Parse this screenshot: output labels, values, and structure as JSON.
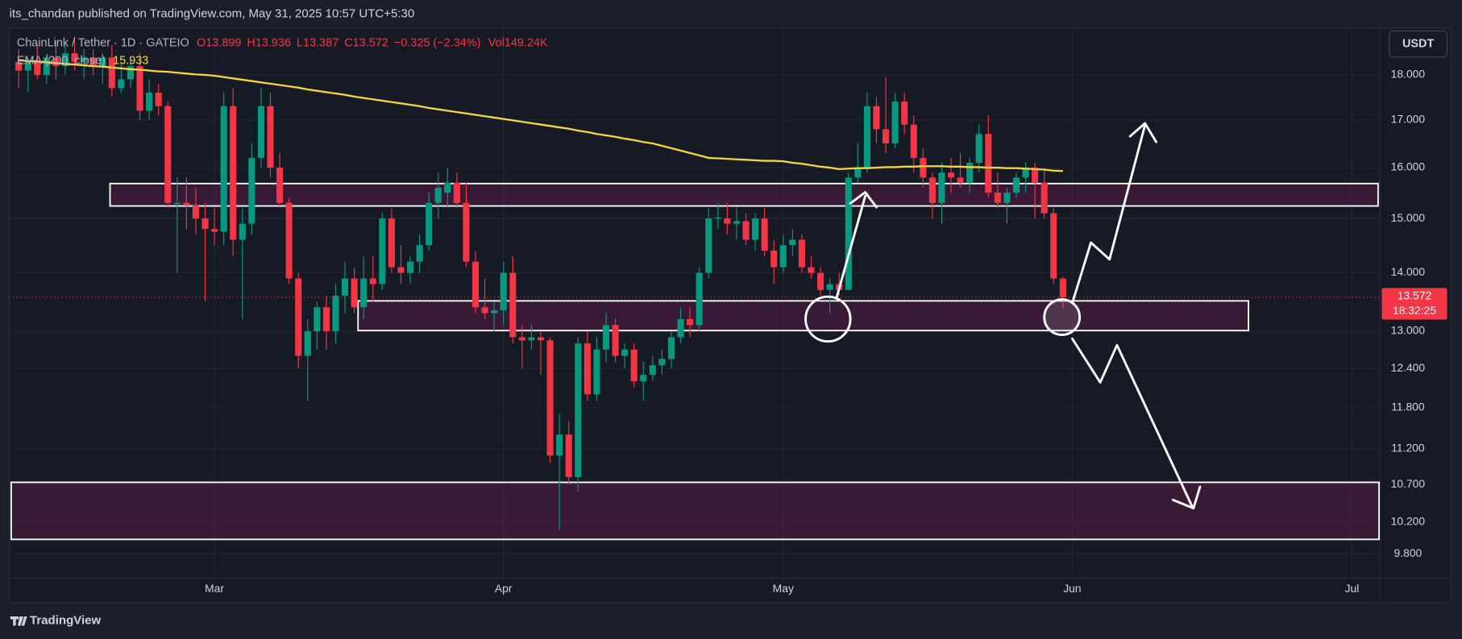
{
  "chart_data": {
    "type": "candlestick",
    "published": "its_chandan published on TradingView.com, May 31, 2025 10:57 UTC+5:30",
    "symbol": "ChainLink / Tether · 1D · GATEIO",
    "legend_text": [
      "O13.899",
      "H13.936",
      "L13.387",
      "C13.572",
      "−0.325 (−2.34%)",
      "Vol149.24K"
    ],
    "indicator": {
      "name": "EMA (200, close)",
      "value_label": "15.933",
      "color": "#f5d63d",
      "values": [
        18.34,
        18.32,
        18.31,
        18.29,
        18.27,
        18.25,
        18.24,
        18.22,
        18.2,
        18.19,
        18.17,
        18.15,
        18.13,
        18.12,
        18.1,
        18.08,
        18.07,
        18.05,
        18.03,
        18.01,
        18.0,
        17.98,
        17.95,
        17.92,
        17.89,
        17.86,
        17.83,
        17.8,
        17.77,
        17.74,
        17.71,
        17.67,
        17.64,
        17.61,
        17.58,
        17.55,
        17.51,
        17.48,
        17.45,
        17.42,
        17.39,
        17.36,
        17.33,
        17.3,
        17.26,
        17.23,
        17.2,
        17.17,
        17.14,
        17.11,
        17.08,
        17.05,
        17.02,
        16.99,
        16.96,
        16.93,
        16.9,
        16.87,
        16.84,
        16.81,
        16.77,
        16.74,
        16.7,
        16.67,
        16.64,
        16.6,
        16.57,
        16.53,
        16.5,
        16.45,
        16.4,
        16.35,
        16.3,
        16.25,
        16.2,
        16.19,
        16.18,
        16.17,
        16.16,
        16.15,
        16.14,
        16.14,
        16.13,
        16.1,
        16.08,
        16.05,
        16.02,
        16.0,
        15.97,
        15.98,
        15.99,
        15.99,
        16.0,
        16.01,
        16.01,
        16.02,
        16.02,
        16.03,
        16.03,
        16.03,
        16.02,
        16.02,
        16.01,
        16.01,
        16.0,
        16.0,
        15.99,
        15.99,
        15.98,
        15.97,
        15.96,
        15.94,
        15.933,
        null,
        null,
        null,
        null,
        null,
        null,
        null,
        null,
        null,
        null,
        null,
        null,
        null,
        null,
        null,
        null,
        null,
        null,
        null,
        null,
        null,
        null,
        null,
        null,
        null,
        null,
        null,
        null,
        null,
        null,
        null,
        null,
        null,
        null
      ]
    },
    "currency": "USDT",
    "price_tag": "13.572",
    "countdown": "18:32:25",
    "brand": "TradingView",
    "up_color": "#089981",
    "down_color": "#f23645",
    "log_scale": true,
    "grid": true,
    "ylim": [
      9.5,
      19.1
    ],
    "yticks": [
      {
        "value": 18,
        "label": "18.000"
      },
      {
        "value": 17,
        "label": "17.000"
      },
      {
        "value": 16,
        "label": "16.000"
      },
      {
        "value": 15,
        "label": "15.000"
      },
      {
        "value": 14,
        "label": "14.000"
      },
      {
        "value": 13,
        "label": "13.000"
      },
      {
        "value": 12.4,
        "label": "12.400"
      },
      {
        "value": 11.8,
        "label": "11.800"
      },
      {
        "value": 11.2,
        "label": "11.200"
      },
      {
        "value": 10.7,
        "label": "10.700"
      },
      {
        "value": 10.2,
        "label": "10.200"
      },
      {
        "value": 9.8,
        "label": "9.800"
      }
    ],
    "zones": [
      {
        "top": 15.68,
        "bottom": 15.24
      },
      {
        "top": 13.51,
        "bottom": 13.01
      },
      {
        "top": 10.73,
        "bottom": 9.98
      }
    ],
    "categories": [
      null,
      null,
      null,
      null,
      null,
      null,
      null,
      null,
      null,
      null,
      null,
      null,
      null,
      null,
      null,
      null,
      null,
      null,
      null,
      null,
      null,
      "Mar",
      null,
      null,
      null,
      null,
      null,
      null,
      null,
      null,
      null,
      null,
      null,
      null,
      null,
      null,
      null,
      null,
      null,
      null,
      null,
      null,
      null,
      null,
      null,
      null,
      null,
      null,
      null,
      null,
      null,
      null,
      "Apr",
      null,
      null,
      null,
      null,
      null,
      null,
      null,
      null,
      null,
      null,
      null,
      null,
      null,
      null,
      null,
      null,
      null,
      null,
      null,
      null,
      null,
      null,
      null,
      null,
      null,
      null,
      null,
      null,
      null,
      "May",
      null,
      null,
      null,
      null,
      null,
      null,
      null,
      null,
      null,
      null,
      null,
      null,
      null,
      null,
      null,
      null,
      null,
      null,
      null,
      null,
      null,
      null,
      null,
      null,
      null,
      null,
      null,
      null,
      null,
      null,
      "Jun",
      null,
      null,
      null,
      null,
      null,
      null,
      null,
      null,
      null,
      null,
      null,
      null,
      null,
      null,
      null,
      null,
      null,
      null,
      null,
      null,
      null,
      null,
      null,
      null,
      null,
      null,
      null,
      null,
      null,
      "Jul",
      null,
      null,
      null
    ],
    "candles": [
      [
        18.3,
        18.6,
        17.7,
        18.1
      ],
      [
        18.1,
        18.4,
        17.6,
        18.3
      ],
      [
        18.3,
        18.7,
        17.9,
        18.0
      ],
      [
        18.0,
        18.5,
        17.8,
        18.4
      ],
      [
        18.4,
        18.8,
        17.9,
        18.2
      ],
      [
        18.2,
        18.7,
        18.0,
        18.5
      ],
      [
        18.5,
        18.9,
        18.1,
        18.3
      ],
      [
        18.3,
        18.6,
        17.9,
        18.4
      ],
      [
        18.4,
        18.6,
        18.0,
        18.2
      ],
      [
        18.2,
        18.5,
        17.8,
        18.4
      ],
      [
        18.4,
        18.7,
        17.5,
        17.7
      ],
      [
        17.7,
        18.3,
        17.6,
        17.9
      ],
      [
        17.9,
        18.4,
        17.7,
        18.2
      ],
      [
        18.2,
        18.5,
        17.0,
        17.2
      ],
      [
        17.2,
        17.9,
        17.0,
        17.6
      ],
      [
        17.6,
        17.8,
        17.1,
        17.3
      ],
      [
        17.3,
        17.4,
        15.2,
        15.3
      ],
      [
        15.3,
        15.8,
        14.0,
        15.3
      ],
      [
        15.3,
        15.8,
        14.8,
        15.25
      ],
      [
        15.25,
        15.6,
        14.7,
        15.0
      ],
      [
        15.0,
        15.3,
        13.5,
        14.8
      ],
      [
        14.8,
        15.2,
        14.5,
        14.75
      ],
      [
        14.75,
        17.6,
        14.5,
        17.3
      ],
      [
        17.3,
        17.7,
        14.3,
        14.6
      ],
      [
        14.6,
        15.2,
        13.2,
        14.9
      ],
      [
        14.9,
        16.5,
        14.7,
        16.2
      ],
      [
        16.2,
        17.7,
        16.0,
        17.3
      ],
      [
        17.3,
        17.6,
        15.8,
        16.0
      ],
      [
        16.0,
        16.3,
        15.2,
        15.3
      ],
      [
        15.3,
        15.4,
        13.8,
        13.9
      ],
      [
        13.9,
        14.0,
        12.4,
        12.6
      ],
      [
        12.6,
        13.2,
        11.9,
        13.0
      ],
      [
        13.0,
        13.5,
        12.7,
        13.4
      ],
      [
        13.4,
        13.6,
        12.7,
        13.0
      ],
      [
        13.0,
        13.8,
        12.8,
        13.6
      ],
      [
        13.6,
        14.2,
        13.3,
        13.9
      ],
      [
        13.9,
        14.1,
        13.3,
        13.4
      ],
      [
        13.4,
        14.3,
        13.2,
        13.9
      ],
      [
        13.9,
        14.3,
        13.5,
        13.8
      ],
      [
        13.8,
        15.1,
        13.7,
        15.0
      ],
      [
        15.0,
        15.2,
        14.0,
        14.1
      ],
      [
        14.1,
        14.5,
        13.8,
        14.0
      ],
      [
        14.0,
        14.3,
        13.8,
        14.2
      ],
      [
        14.2,
        14.7,
        14.0,
        14.5
      ],
      [
        14.5,
        15.5,
        14.4,
        15.3
      ],
      [
        15.3,
        15.9,
        15.0,
        15.6
      ],
      [
        15.5,
        16.0,
        15.2,
        15.7
      ],
      [
        15.7,
        15.9,
        15.2,
        15.3
      ],
      [
        15.3,
        15.7,
        14.1,
        14.2
      ],
      [
        14.2,
        14.4,
        13.3,
        13.4
      ],
      [
        13.4,
        13.9,
        13.2,
        13.3
      ],
      [
        13.3,
        13.5,
        13.0,
        13.35
      ],
      [
        13.35,
        14.2,
        13.1,
        14.0
      ],
      [
        14.0,
        14.3,
        12.8,
        12.9
      ],
      [
        12.9,
        13.1,
        12.4,
        12.85
      ],
      [
        12.85,
        13.1,
        12.7,
        12.9
      ],
      [
        12.9,
        13.0,
        12.3,
        12.85
      ],
      [
        12.85,
        12.9,
        11.0,
        11.1
      ],
      [
        11.1,
        11.7,
        10.1,
        11.4
      ],
      [
        11.4,
        11.6,
        10.7,
        10.8
      ],
      [
        10.8,
        12.9,
        10.6,
        12.8
      ],
      [
        12.8,
        13.0,
        11.9,
        12.0
      ],
      [
        12.0,
        12.9,
        11.9,
        12.7
      ],
      [
        12.7,
        13.3,
        12.5,
        13.1
      ],
      [
        13.1,
        13.2,
        12.5,
        12.6
      ],
      [
        12.6,
        12.8,
        12.4,
        12.7
      ],
      [
        12.7,
        12.8,
        12.1,
        12.2
      ],
      [
        12.2,
        12.5,
        11.9,
        12.3
      ],
      [
        12.3,
        12.6,
        12.2,
        12.45
      ],
      [
        12.45,
        12.7,
        12.3,
        12.55
      ],
      [
        12.55,
        13.0,
        12.4,
        12.9
      ],
      [
        12.9,
        13.4,
        12.8,
        13.2
      ],
      [
        13.2,
        13.4,
        12.9,
        13.1
      ],
      [
        13.1,
        14.1,
        13.0,
        14.0
      ],
      [
        14.0,
        15.2,
        13.9,
        15.0
      ],
      [
        15.0,
        15.3,
        14.8,
        15.02
      ],
      [
        15.0,
        15.3,
        14.7,
        14.9
      ],
      [
        14.9,
        15.2,
        14.6,
        14.95
      ],
      [
        14.95,
        15.1,
        14.5,
        14.6
      ],
      [
        14.6,
        15.1,
        14.4,
        15.0
      ],
      [
        15.0,
        15.2,
        14.3,
        14.4
      ],
      [
        14.4,
        14.6,
        13.8,
        14.1
      ],
      [
        14.1,
        14.7,
        14.0,
        14.5
      ],
      [
        14.5,
        14.8,
        14.3,
        14.6
      ],
      [
        14.6,
        14.7,
        14.0,
        14.1
      ],
      [
        14.1,
        14.3,
        13.9,
        14.0
      ],
      [
        14.0,
        14.1,
        13.6,
        13.7
      ],
      [
        13.7,
        13.9,
        13.3,
        13.8
      ],
      [
        13.8,
        14.0,
        13.6,
        13.7
      ],
      [
        13.7,
        15.9,
        13.7,
        15.8
      ],
      [
        15.8,
        16.5,
        15.7,
        16.0
      ],
      [
        16.0,
        17.6,
        15.9,
        17.3
      ],
      [
        17.3,
        17.5,
        16.5,
        16.8
      ],
      [
        16.8,
        17.95,
        16.3,
        16.5
      ],
      [
        16.5,
        17.6,
        16.4,
        17.4
      ],
      [
        17.4,
        17.6,
        16.7,
        16.9
      ],
      [
        16.9,
        17.1,
        15.9,
        16.2
      ],
      [
        16.2,
        16.4,
        15.6,
        15.8
      ],
      [
        15.8,
        15.9,
        15.0,
        15.3
      ],
      [
        15.3,
        16.1,
        14.9,
        15.9
      ],
      [
        15.9,
        16.2,
        15.5,
        15.8
      ],
      [
        15.8,
        16.3,
        15.6,
        15.7
      ],
      [
        15.7,
        16.2,
        15.5,
        16.1
      ],
      [
        16.1,
        16.9,
        15.9,
        16.7
      ],
      [
        16.7,
        17.1,
        15.4,
        15.5
      ],
      [
        15.5,
        15.9,
        15.2,
        15.3
      ],
      [
        15.3,
        15.6,
        14.9,
        15.5
      ],
      [
        15.5,
        15.9,
        15.4,
        15.8
      ],
      [
        15.8,
        16.1,
        15.5,
        16.0
      ],
      [
        16.0,
        16.1,
        15.0,
        15.7
      ],
      [
        15.7,
        16.0,
        15.0,
        15.1
      ],
      [
        15.1,
        15.2,
        13.8,
        13.9
      ],
      [
        13.899,
        13.936,
        13.387,
        13.572
      ],
      null,
      null,
      null,
      null,
      null,
      null,
      null,
      null,
      null,
      null,
      null,
      null,
      null,
      null,
      null,
      null,
      null,
      null,
      null,
      null,
      null,
      null,
      null,
      null,
      null,
      null,
      null,
      null,
      null,
      null,
      null,
      null,
      null,
      null
    ]
  }
}
